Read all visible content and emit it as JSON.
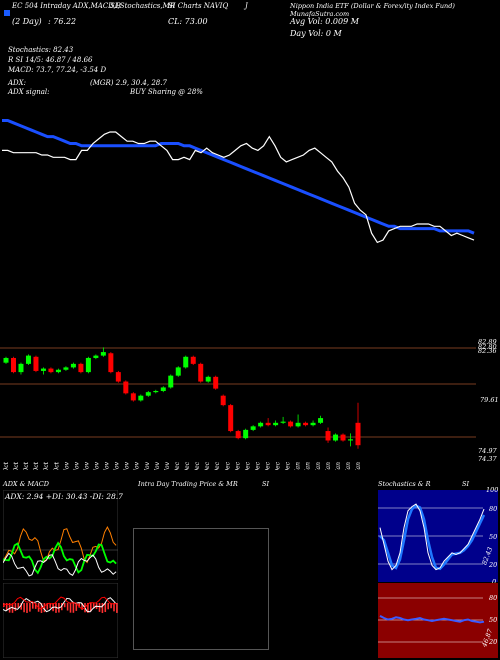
{
  "header": {
    "row1": [
      "EC 504 Intraday ADX,MACD,B",
      "SI,Stochastics,MR",
      "SI Charts NAVIQ",
      "J",
      "Nippon India ETF (Dollar & Forex/ity Index Fund) MunafaSutra.com"
    ],
    "row2": [
      "(2 Day)",
      ": 76.22",
      "CL: 73.00",
      "Avg Vol: 0.009 M"
    ],
    "row3": "Day Vol: 0   M",
    "stoch": "Stochastics: 82.43",
    "rsi": "R   SI 14/5: 46.87 / 48.66",
    "macd": "MACD: 73.7, 77.24, -3.54  D",
    "adx": "ADX:",
    "mgr": "(MGR) 2.9, 30.4, 28.7",
    "adx_signal": "ADX  signal:",
    "buy": "BUY Sharing @ 28%"
  },
  "price_axis": [
    "82.89",
    "82.80",
    "82.36",
    "79.61",
    "74.97",
    "74.37"
  ],
  "dates": [
    "17 Oct",
    "22 Oct",
    "24 Oct",
    "28 Oct",
    "29 Oct",
    "31 Oct",
    "04 Nov",
    "07 Nov",
    "11 Nov",
    "13 Nov",
    "14 Nov",
    "18 Nov",
    "20 Nov",
    "22 Nov",
    "26 Nov",
    "28 Nov",
    "29 Nov",
    "02 Dec",
    "04 Dec",
    "06 Dec",
    "09 Dec",
    "11 Dec",
    "13 Dec",
    "17 Dec",
    "19 Dec",
    "20 Dec",
    "24 Dec",
    "27 Dec",
    "31 Dec",
    "02 Jan",
    "06 Jan",
    "08 Jan",
    "09 Jan",
    "13 Jan",
    "15 Jan",
    "16 Jan"
  ],
  "panels": {
    "adx_title": "ADX  & MACD",
    "adx_values": "ADX: 2.94  +DI: 30.43 -DI: 28.7",
    "intraday_title": "Intra  Day Trading Price  & MR",
    "intraday_si": "SI",
    "stoch_title": "Stochastics & R",
    "stoch_si": "SI",
    "stoch_axis": [
      "100",
      "80",
      "50",
      "20",
      "0"
    ],
    "stoch_value": "82.43",
    "rsi_axis": [
      "80",
      "50",
      "20"
    ],
    "rsi_value": "46.87",
    "adx_axis": [],
    "macd_axis": []
  },
  "colors": {
    "ma": "#1a4fff",
    "price": "#ffffff",
    "bull": "#00ff00",
    "bear": "#ff0000",
    "grid": "#a0522d",
    "bg": "#000000"
  },
  "chart_data": {
    "type": "candlestick",
    "y_range": [
      74.0,
      83.5
    ],
    "candles": [
      {
        "o": 82.0,
        "c": 82.4,
        "h": 82.5,
        "l": 81.9,
        "d": "up"
      },
      {
        "o": 82.4,
        "c": 81.2,
        "h": 82.5,
        "l": 81.1,
        "d": "down"
      },
      {
        "o": 81.2,
        "c": 81.9,
        "h": 82.0,
        "l": 81.0,
        "d": "up"
      },
      {
        "o": 81.9,
        "c": 82.6,
        "h": 82.7,
        "l": 81.8,
        "d": "up"
      },
      {
        "o": 82.5,
        "c": 81.3,
        "h": 82.6,
        "l": 81.2,
        "d": "down"
      },
      {
        "o": 81.3,
        "c": 81.5,
        "h": 81.6,
        "l": 81.0,
        "d": "up"
      },
      {
        "o": 81.5,
        "c": 81.2,
        "h": 81.6,
        "l": 81.1,
        "d": "down"
      },
      {
        "o": 81.2,
        "c": 81.4,
        "h": 81.5,
        "l": 81.1,
        "d": "up"
      },
      {
        "o": 81.4,
        "c": 81.6,
        "h": 81.7,
        "l": 81.3,
        "d": "up"
      },
      {
        "o": 81.6,
        "c": 81.9,
        "h": 82.0,
        "l": 81.5,
        "d": "up"
      },
      {
        "o": 81.9,
        "c": 81.2,
        "h": 82.0,
        "l": 81.1,
        "d": "down"
      },
      {
        "o": 81.2,
        "c": 82.4,
        "h": 82.5,
        "l": 81.1,
        "d": "up"
      },
      {
        "o": 82.4,
        "c": 82.6,
        "h": 82.7,
        "l": 82.3,
        "d": "up"
      },
      {
        "o": 82.6,
        "c": 82.9,
        "h": 83.3,
        "l": 82.5,
        "d": "up"
      },
      {
        "o": 82.8,
        "c": 81.2,
        "h": 82.9,
        "l": 81.1,
        "d": "down"
      },
      {
        "o": 81.2,
        "c": 80.4,
        "h": 81.3,
        "l": 80.3,
        "d": "down"
      },
      {
        "o": 80.4,
        "c": 79.4,
        "h": 80.5,
        "l": 79.3,
        "d": "down"
      },
      {
        "o": 79.4,
        "c": 78.8,
        "h": 79.5,
        "l": 78.7,
        "d": "down"
      },
      {
        "o": 78.8,
        "c": 79.2,
        "h": 79.3,
        "l": 78.7,
        "d": "up"
      },
      {
        "o": 79.2,
        "c": 79.5,
        "h": 79.6,
        "l": 79.1,
        "d": "up"
      },
      {
        "o": 79.5,
        "c": 79.6,
        "h": 79.7,
        "l": 79.4,
        "d": "up"
      },
      {
        "o": 79.6,
        "c": 79.9,
        "h": 80.0,
        "l": 79.5,
        "d": "up"
      },
      {
        "o": 79.9,
        "c": 80.9,
        "h": 81.0,
        "l": 79.8,
        "d": "up"
      },
      {
        "o": 80.9,
        "c": 81.6,
        "h": 81.7,
        "l": 80.8,
        "d": "up"
      },
      {
        "o": 81.6,
        "c": 82.5,
        "h": 82.6,
        "l": 81.5,
        "d": "up"
      },
      {
        "o": 82.5,
        "c": 81.9,
        "h": 82.6,
        "l": 81.8,
        "d": "down"
      },
      {
        "o": 81.9,
        "c": 80.4,
        "h": 82.0,
        "l": 80.3,
        "d": "down"
      },
      {
        "o": 80.4,
        "c": 80.8,
        "h": 80.9,
        "l": 80.3,
        "d": "up"
      },
      {
        "o": 80.8,
        "c": 79.8,
        "h": 80.9,
        "l": 79.7,
        "d": "down"
      },
      {
        "o": 79.2,
        "c": 78.4,
        "h": 79.3,
        "l": 78.3,
        "d": "down"
      },
      {
        "o": 78.4,
        "c": 76.2,
        "h": 78.5,
        "l": 76.1,
        "d": "down"
      },
      {
        "o": 76.2,
        "c": 75.6,
        "h": 76.3,
        "l": 75.5,
        "d": "down"
      },
      {
        "o": 75.6,
        "c": 76.3,
        "h": 76.4,
        "l": 75.5,
        "d": "up"
      },
      {
        "o": 76.3,
        "c": 76.6,
        "h": 76.7,
        "l": 76.2,
        "d": "up"
      },
      {
        "o": 76.6,
        "c": 76.9,
        "h": 77.0,
        "l": 76.5,
        "d": "up"
      },
      {
        "o": 76.9,
        "c": 76.7,
        "h": 77.3,
        "l": 76.6,
        "d": "down"
      },
      {
        "o": 76.7,
        "c": 76.9,
        "h": 77.1,
        "l": 76.6,
        "d": "up"
      },
      {
        "o": 76.9,
        "c": 77.0,
        "h": 77.4,
        "l": 76.8,
        "d": "up"
      },
      {
        "o": 77.0,
        "c": 76.6,
        "h": 77.1,
        "l": 76.5,
        "d": "down"
      },
      {
        "o": 76.6,
        "c": 76.9,
        "h": 77.6,
        "l": 76.5,
        "d": "up"
      },
      {
        "o": 76.9,
        "c": 76.7,
        "h": 77.0,
        "l": 76.6,
        "d": "down"
      },
      {
        "o": 76.7,
        "c": 76.9,
        "h": 77.1,
        "l": 76.6,
        "d": "up"
      },
      {
        "o": 76.9,
        "c": 77.3,
        "h": 77.5,
        "l": 76.8,
        "d": "up"
      },
      {
        "o": 76.2,
        "c": 75.4,
        "h": 76.5,
        "l": 75.2,
        "d": "down"
      },
      {
        "o": 75.4,
        "c": 75.9,
        "h": 76.0,
        "l": 75.3,
        "d": "up"
      },
      {
        "o": 75.9,
        "c": 75.4,
        "h": 76.0,
        "l": 75.3,
        "d": "down"
      },
      {
        "o": 75.4,
        "c": 75.5,
        "h": 76.0,
        "l": 74.9,
        "d": "up"
      },
      {
        "o": 76.9,
        "c": 75.0,
        "h": 78.6,
        "l": 74.7,
        "d": "down"
      }
    ],
    "price_line": [
      52,
      52,
      51,
      51,
      51,
      51,
      51,
      50,
      50,
      49,
      49,
      49,
      48,
      48,
      52,
      52,
      55,
      57,
      59,
      60,
      60,
      58,
      56,
      56,
      55,
      55,
      56,
      56,
      54,
      52,
      48,
      48,
      49,
      48,
      52,
      51,
      53,
      51,
      50,
      49,
      50,
      52,
      54,
      55,
      53,
      52,
      54,
      58,
      54,
      49,
      47,
      48,
      49,
      50,
      52,
      53,
      51,
      49,
      47,
      43,
      40,
      36,
      29,
      26,
      24,
      16,
      12,
      13,
      17,
      18,
      19,
      19,
      19,
      20,
      20,
      20,
      19,
      19,
      17,
      15,
      16,
      15,
      14,
      13
    ],
    "ma_line": [
      65,
      65,
      64,
      63,
      62,
      61,
      60,
      59,
      58,
      58,
      57,
      56,
      55,
      55,
      54,
      54,
      54,
      54,
      54,
      54,
      54,
      54,
      54,
      54,
      54,
      54,
      54,
      54,
      55,
      55,
      55,
      55,
      54,
      54,
      53,
      52,
      51,
      50,
      49,
      48,
      47,
      46,
      45,
      44,
      43,
      42,
      41,
      40,
      39,
      38,
      37,
      36,
      35,
      34,
      33,
      32,
      31,
      30,
      29,
      28,
      27,
      26,
      25,
      24,
      23,
      22,
      21,
      20,
      19,
      19,
      18,
      18,
      18,
      18,
      18,
      18,
      18,
      17,
      17,
      17,
      17,
      17,
      17,
      16
    ],
    "stoch_k": [
      60,
      40,
      20,
      10,
      15,
      30,
      60,
      80,
      85,
      88,
      80,
      60,
      30,
      15,
      10,
      12,
      20,
      25,
      30,
      28,
      30,
      35,
      40,
      50,
      60,
      70,
      82
    ],
    "stoch_d": [
      50,
      45,
      30,
      15,
      12,
      22,
      45,
      70,
      82,
      86,
      84,
      70,
      45,
      25,
      12,
      11,
      16,
      22,
      28,
      29,
      30,
      33,
      38,
      45,
      55,
      65,
      75
    ],
    "rsi": [
      55,
      52,
      50,
      51,
      53,
      52,
      50,
      49,
      50,
      51,
      52,
      50,
      49,
      48,
      49,
      50,
      51,
      50,
      49,
      48,
      47,
      49,
      50,
      48,
      47,
      46,
      47
    ]
  }
}
